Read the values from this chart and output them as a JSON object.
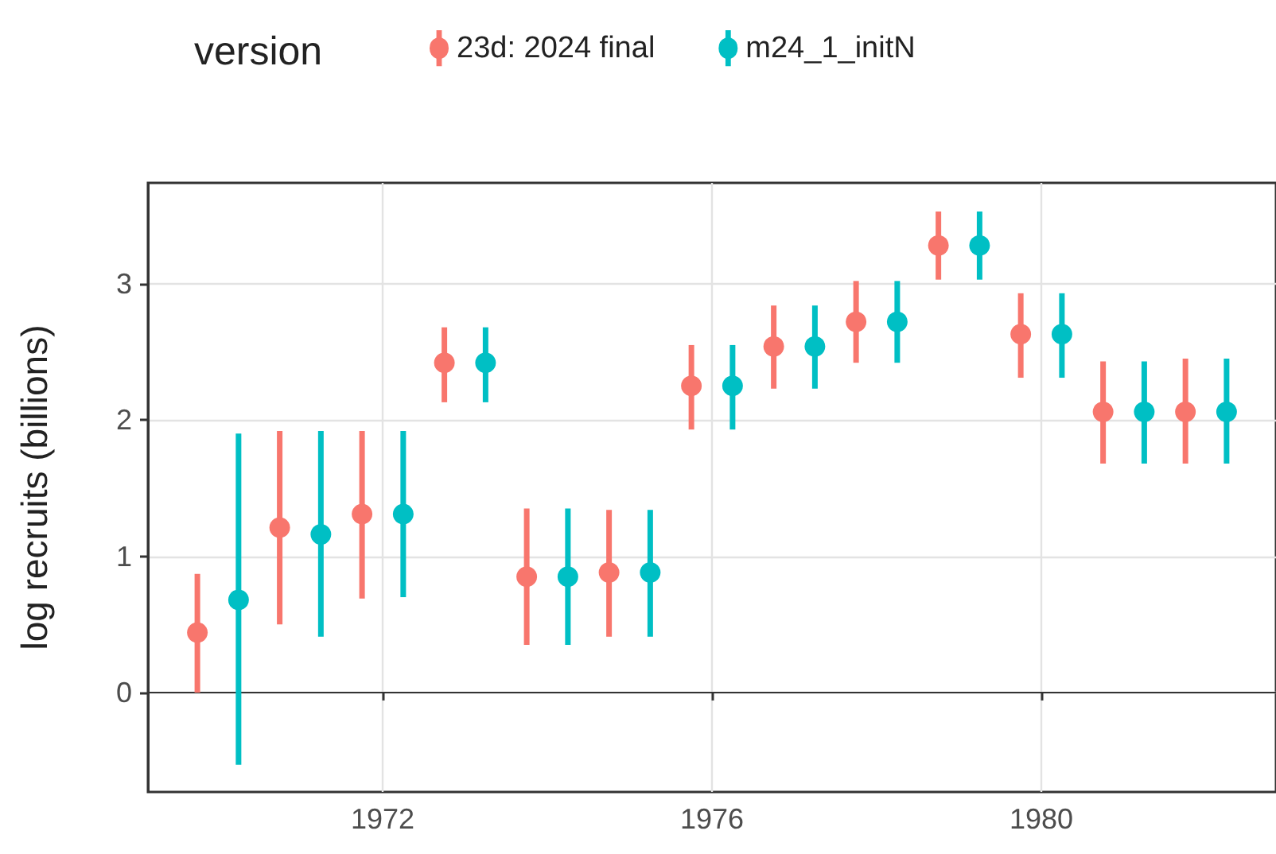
{
  "chart_data": {
    "type": "scatter",
    "ylabel": "log recruits (billions)",
    "legend_title": "version",
    "legend": "top",
    "grid": true,
    "marker": "circle",
    "xlim": [
      1969.15,
      1982.85
    ],
    "xticks": [
      1972,
      1976,
      1980
    ],
    "ylim": [
      -0.73,
      3.74
    ],
    "yticks": [
      0,
      1,
      2,
      3
    ],
    "series": [
      {
        "name": "23d: 2024 final",
        "color": "#f8766d",
        "x": [
          1969.75,
          1970.75,
          1971.75,
          1972.75,
          1973.75,
          1974.75,
          1975.75,
          1976.75,
          1977.75,
          1978.75,
          1979.75,
          1980.75,
          1981.75
        ],
        "values": [
          0.44,
          1.21,
          1.31,
          2.42,
          0.85,
          0.88,
          2.25,
          2.54,
          2.72,
          3.28,
          2.63,
          2.06,
          2.06
        ],
        "errors": [
          [
            0.0,
            0.87
          ],
          [
            0.5,
            1.92
          ],
          [
            0.69,
            1.92
          ],
          [
            2.13,
            2.68
          ],
          [
            0.35,
            1.35
          ],
          [
            0.41,
            1.34
          ],
          [
            1.93,
            2.55
          ],
          [
            2.23,
            2.84
          ],
          [
            2.42,
            3.02
          ],
          [
            3.03,
            3.53
          ],
          [
            2.31,
            2.93
          ],
          [
            1.68,
            2.43
          ],
          [
            1.68,
            2.45
          ]
        ]
      },
      {
        "name": "m24_1_initN",
        "color": "#00bfc4",
        "x": [
          1970.25,
          1971.25,
          1972.25,
          1973.25,
          1974.25,
          1975.25,
          1976.25,
          1977.25,
          1978.25,
          1979.25,
          1980.25,
          1981.25,
          1982.25
        ],
        "values": [
          0.68,
          1.16,
          1.31,
          2.42,
          0.85,
          0.88,
          2.25,
          2.54,
          2.72,
          3.28,
          2.63,
          2.06,
          2.06
        ],
        "errors": [
          [
            -0.53,
            1.9
          ],
          [
            0.41,
            1.92
          ],
          [
            0.7,
            1.92
          ],
          [
            2.13,
            2.68
          ],
          [
            0.35,
            1.35
          ],
          [
            0.41,
            1.34
          ],
          [
            1.93,
            2.55
          ],
          [
            2.23,
            2.84
          ],
          [
            2.42,
            3.02
          ],
          [
            3.03,
            3.53
          ],
          [
            2.31,
            2.93
          ],
          [
            1.68,
            2.43
          ],
          [
            1.68,
            2.45
          ]
        ]
      }
    ]
  }
}
